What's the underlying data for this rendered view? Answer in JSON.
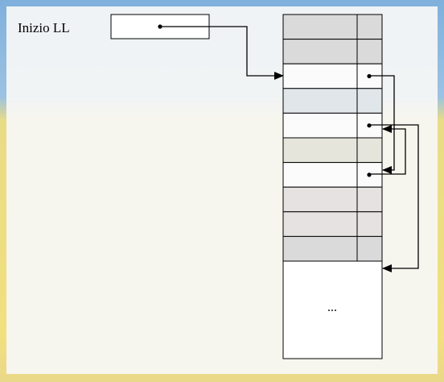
{
  "diagram": {
    "label": "Inizio LL",
    "ellipsis": "...",
    "colors": {
      "line": "#000000",
      "panel": "#f7f7f6",
      "cell_grey": "#dadada",
      "cell_white": "#fbfbfb",
      "cell_beige": "#e5e5dc",
      "cell_blue": "#e0e6ea",
      "cell_pink": "#e6e2e2"
    },
    "rows": [
      {
        "color": "cell_grey",
        "pointer": false
      },
      {
        "color": "cell_grey",
        "pointer": false
      },
      {
        "color": "cell_white",
        "pointer": true
      },
      {
        "color": "cell_blue",
        "pointer": false
      },
      {
        "color": "cell_white",
        "pointer": true
      },
      {
        "color": "cell_beige",
        "pointer": false
      },
      {
        "color": "cell_white",
        "pointer": true
      },
      {
        "color": "cell_pink",
        "pointer": false
      },
      {
        "color": "cell_pink",
        "pointer": false
      },
      {
        "color": "cell_grey",
        "pointer": false
      }
    ]
  }
}
